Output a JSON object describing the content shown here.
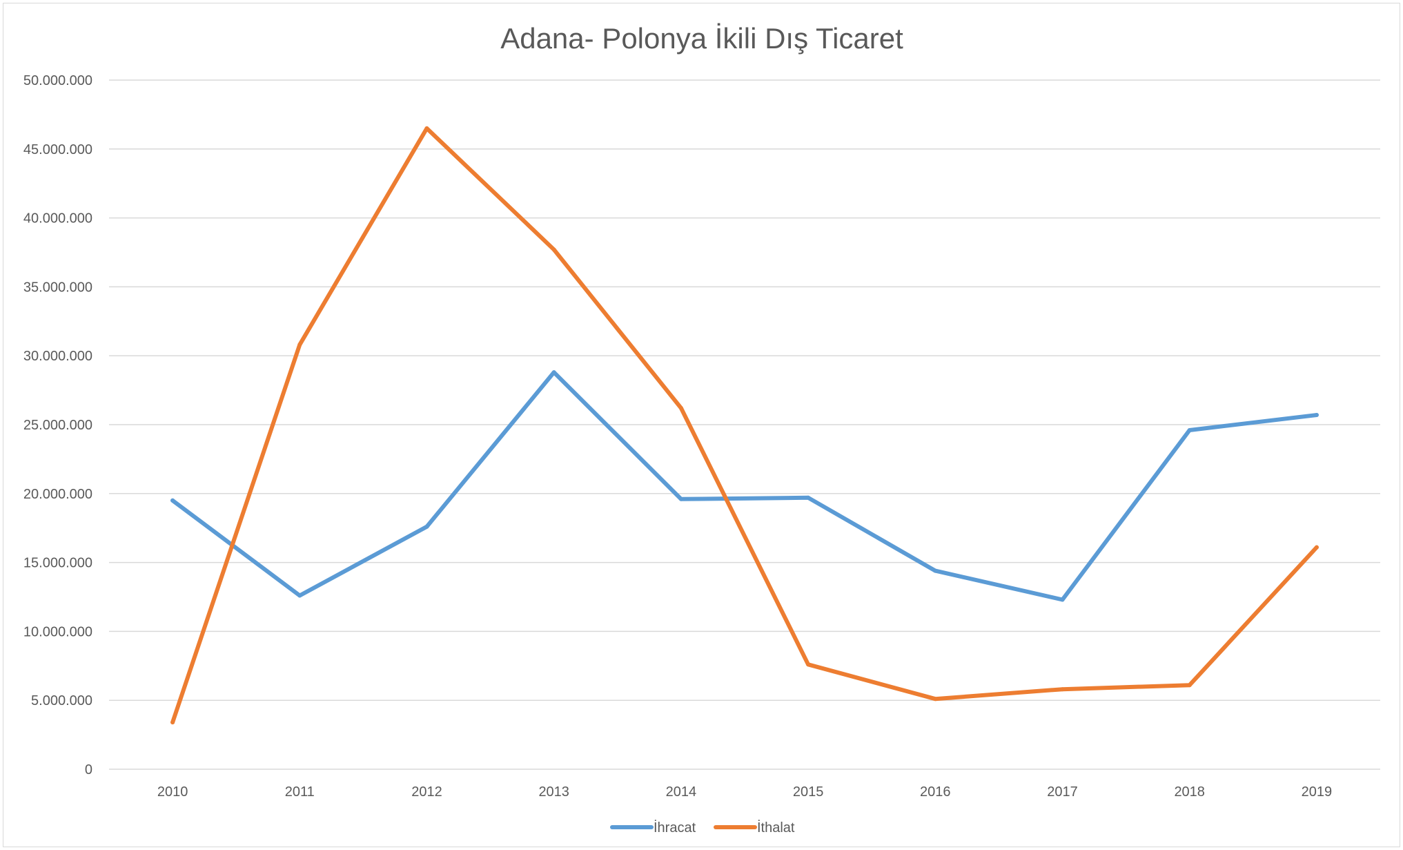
{
  "chart_data": {
    "type": "line",
    "title": "Adana- Polonya İkili Dış Ticaret",
    "xlabel": "",
    "ylabel": "",
    "categories": [
      "2010",
      "2011",
      "2012",
      "2013",
      "2014",
      "2015",
      "2016",
      "2017",
      "2018",
      "2019"
    ],
    "y_ticks": [
      "0",
      "5.000.000",
      "10.000.000",
      "15.000.000",
      "20.000.000",
      "25.000.000",
      "30.000.000",
      "35.000.000",
      "40.000.000",
      "45.000.000",
      "50.000.000"
    ],
    "ylim": [
      0,
      50000000
    ],
    "grid": true,
    "legend_position": "bottom",
    "series": [
      {
        "name": "İhracat",
        "color": "#5b9bd5",
        "values": [
          19500000,
          12600000,
          17600000,
          28800000,
          19600000,
          19700000,
          14400000,
          12300000,
          24600000,
          25700000
        ]
      },
      {
        "name": "İthalat",
        "color": "#ed7d31",
        "values": [
          3400000,
          30800000,
          46500000,
          37700000,
          26200000,
          7600000,
          5100000,
          5800000,
          6100000,
          16100000
        ]
      }
    ]
  }
}
